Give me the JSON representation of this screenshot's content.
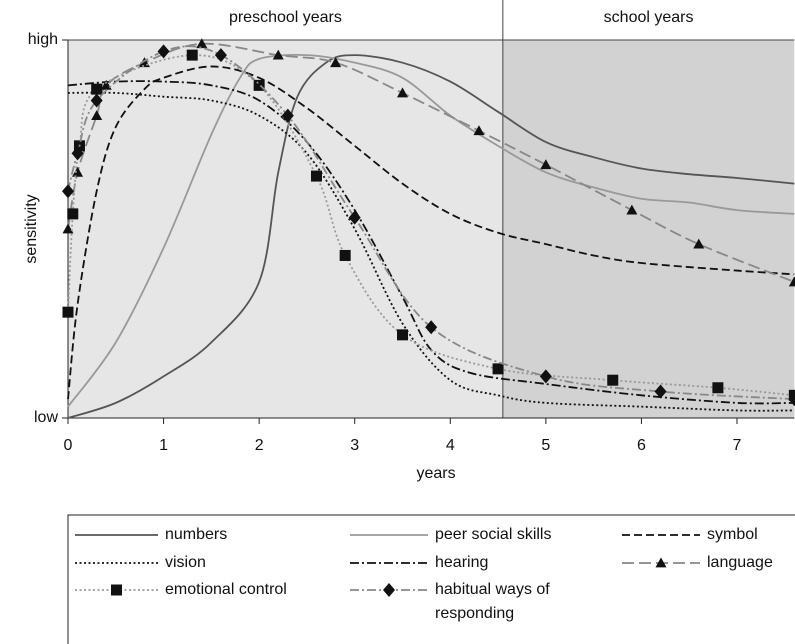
{
  "chart_data": {
    "type": "line",
    "xlabel": "years",
    "ylabel": "sensitivity",
    "xlim": [
      0,
      7.6
    ],
    "ylim": [
      0,
      100
    ],
    "xticks": [
      0,
      1,
      2,
      3,
      4,
      5,
      6,
      7
    ],
    "yticks": [
      {
        "value": 0,
        "label": "low"
      },
      {
        "value": 100,
        "label": "high"
      }
    ],
    "regions": [
      {
        "label": "preschool years",
        "start": 0,
        "end": 4.55,
        "color": "#e6e6e6"
      },
      {
        "label": "school years",
        "start": 4.55,
        "end": 7.6,
        "color": "#d2d2d2"
      }
    ],
    "series": [
      {
        "name": "numbers",
        "color": "#555555",
        "dash": "solid",
        "marker": "none",
        "x": [
          0,
          0.5,
          1,
          1.5,
          2,
          2.2,
          2.4,
          2.7,
          3,
          3.5,
          4,
          4.5,
          5,
          5.5,
          6,
          6.5,
          7,
          7.6
        ],
        "values": [
          0,
          4,
          11,
          20,
          36,
          65,
          85,
          94,
          96,
          94,
          89,
          81,
          73,
          69,
          66,
          64.5,
          63.5,
          62
        ]
      },
      {
        "name": "peer social skills",
        "color": "#999999",
        "dash": "solid",
        "marker": "none",
        "x": [
          0,
          0.5,
          1,
          1.5,
          1.8,
          2,
          2.5,
          3,
          3.5,
          4,
          4.5,
          5,
          5.5,
          6,
          6.5,
          7,
          7.6
        ],
        "values": [
          3,
          20,
          45,
          75,
          90,
          95,
          96,
          94,
          90,
          80,
          72,
          65,
          61,
          58,
          57,
          55,
          54
        ]
      },
      {
        "name": "symbol",
        "color": "#111111",
        "dash": "dashed",
        "marker": "none",
        "x": [
          0,
          0.1,
          0.3,
          0.5,
          0.8,
          1,
          1.5,
          2,
          2.5,
          3,
          3.5,
          4,
          4.5,
          5,
          5.5,
          6,
          7,
          7.6
        ],
        "values": [
          5,
          30,
          60,
          77,
          87,
          90,
          93,
          90,
          82,
          72,
          62,
          54,
          49,
          46,
          43,
          41,
          39,
          38
        ]
      },
      {
        "name": "vision",
        "color": "#111111",
        "dash": "dotted",
        "marker": "none",
        "x": [
          0,
          0.5,
          1,
          1.5,
          2,
          2.5,
          3,
          3.5,
          4,
          4.5,
          5,
          6,
          7,
          7.6
        ],
        "values": [
          86,
          86,
          85,
          84,
          80,
          70,
          50,
          25,
          10,
          6,
          4,
          3,
          2,
          2
        ]
      },
      {
        "name": "hearing",
        "color": "#111111",
        "dash": "dashdot",
        "marker": "none",
        "x": [
          0,
          0.5,
          1,
          1.5,
          2,
          2.5,
          3,
          3.5,
          3.8,
          4.2,
          5,
          6,
          7,
          7.6
        ],
        "values": [
          88,
          89,
          89,
          88,
          84,
          73,
          55,
          32,
          18,
          12,
          9,
          6,
          4,
          4
        ]
      },
      {
        "name": "language",
        "color": "#888888",
        "dash": "longdash",
        "marker": "triangle",
        "x": [
          0,
          0.1,
          0.3,
          0.4,
          0.8,
          1.4,
          2.2,
          2.8,
          3.5,
          4.3,
          5,
          5.9,
          6.6,
          7.6
        ],
        "values": [
          50,
          65,
          80,
          88,
          94,
          99,
          96,
          94,
          86,
          76,
          67,
          55,
          46,
          36
        ]
      },
      {
        "name": "emotional control",
        "color": "#999999",
        "dash": "dotted",
        "marker": "square",
        "x": [
          0,
          0.05,
          0.12,
          0.3,
          1.3,
          2,
          2.6,
          2.9,
          3.5,
          4.5,
          5.7,
          6.8,
          7.6
        ],
        "values": [
          28,
          54,
          72,
          87,
          96,
          88,
          64,
          43,
          22,
          13,
          10,
          8,
          6
        ]
      },
      {
        "name": "habitual ways of responding",
        "color": "#888888",
        "dash": "dashdot",
        "marker": "diamond",
        "x": [
          0,
          0.1,
          0.3,
          1,
          1.6,
          2.3,
          3,
          3.8,
          5,
          6.2,
          7.6
        ],
        "values": [
          60,
          70,
          84,
          97,
          96,
          80,
          53,
          24,
          11,
          7,
          5
        ]
      }
    ]
  }
}
